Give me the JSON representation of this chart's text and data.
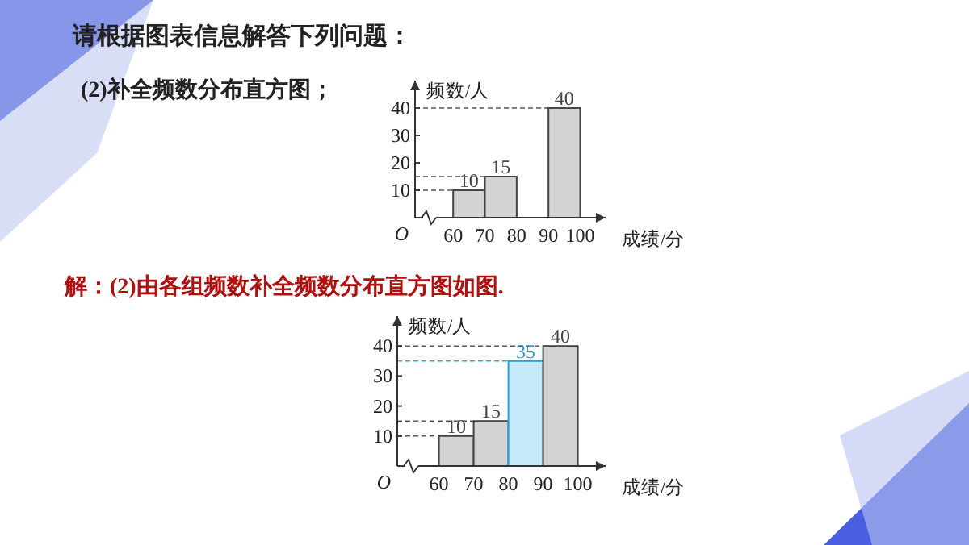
{
  "chart_data": [
    {
      "type": "histogram",
      "xlabel": "成绩/分",
      "ylabel": "频数/人",
      "bins": [
        60,
        70,
        80,
        90,
        100
      ],
      "values": [
        10,
        15,
        null,
        40
      ],
      "colors": [
        "#d3d3d3",
        "#d3d3d3",
        null,
        "#d3d3d3"
      ],
      "xlim": [
        48,
        108
      ],
      "ylim": [
        0,
        50
      ],
      "xticks": [
        60,
        70,
        80,
        90,
        100
      ],
      "yticks": [
        10,
        20,
        30,
        40
      ],
      "data_labels": true,
      "line_style": "dashed",
      "ref_lines": [
        {
          "axis": "y",
          "value": 10,
          "color": "#555555"
        },
        {
          "axis": "y",
          "value": 15,
          "color": "#555555"
        },
        {
          "axis": "y",
          "value": 40,
          "color": "#555555"
        }
      ],
      "annotations": [
        "请根据图表信息解答下列问题：",
        "(2)补全频数分布直方图；",
        "O"
      ]
    },
    {
      "type": "histogram",
      "xlabel": "成绩/分",
      "ylabel": "频数/人",
      "bins": [
        60,
        70,
        80,
        90,
        100
      ],
      "values": [
        10,
        15,
        35,
        40
      ],
      "colors": [
        "#d3d3d3",
        "#d3d3d3",
        "#c6eaf9",
        "#d3d3d3"
      ],
      "xlim": [
        48,
        108
      ],
      "ylim": [
        0,
        50
      ],
      "xticks": [
        60,
        70,
        80,
        90,
        100
      ],
      "yticks": [
        10,
        20,
        30,
        40
      ],
      "data_labels": true,
      "line_style": "dashed",
      "ref_lines": [
        {
          "axis": "y",
          "value": 10,
          "color": "#555555"
        },
        {
          "axis": "y",
          "value": 15,
          "color": "#555555"
        },
        {
          "axis": "y",
          "value": 40,
          "color": "#555555"
        },
        {
          "axis": "y",
          "value": 35,
          "color": "#3aa3d6"
        }
      ],
      "annotations": [
        "解：(2)由各组频数补全频数分布直方图如图.",
        "O"
      ]
    }
  ]
}
